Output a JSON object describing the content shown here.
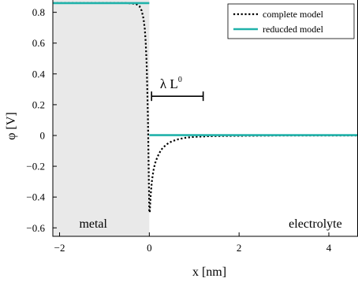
{
  "chart_data": {
    "type": "line",
    "title": "",
    "xlabel": "x   [nm]",
    "ylabel": "φ  [V]",
    "xlim": [
      -2.15,
      4.65
    ],
    "ylim": [
      -0.655,
      0.88
    ],
    "xticks": [
      -2,
      0,
      2,
      4
    ],
    "xtick_labels": [
      "−2",
      "0",
      "2",
      "4"
    ],
    "yticks": [
      0.8,
      0.6,
      0.4,
      0.2,
      0,
      -0.2,
      -0.4,
      -0.6
    ],
    "ytick_labels": [
      "0.8",
      "0.6",
      "0.4",
      "0.2",
      "0",
      "−0.2",
      "−0.4",
      "−0.6"
    ],
    "grid": false,
    "legend_position": "top-right",
    "shaded_region": {
      "x": [
        -2.15,
        0
      ],
      "color": "#e9e9e9"
    },
    "region_labels": {
      "left": "metal",
      "right": "electrolyte"
    },
    "annotation": {
      "text": "λ L",
      "superscript": "0",
      "x_start": 0.05,
      "x_end": 1.2,
      "y": 0.255
    },
    "series": [
      {
        "name": "complete model",
        "style": "dotted",
        "color": "#000000",
        "x": [
          -2.15,
          -0.5,
          -0.3,
          -0.22,
          -0.17,
          -0.13,
          -0.1,
          -0.08,
          -0.06,
          -0.045,
          -0.03,
          -0.02,
          -0.01,
          0.0,
          0.01,
          0.015,
          0.02,
          0.03,
          0.04,
          0.06,
          0.08,
          0.1,
          0.13,
          0.16,
          0.2,
          0.25,
          0.3,
          0.4,
          0.5,
          0.65,
          0.8,
          1.0,
          1.3,
          1.6,
          2.0,
          2.5,
          3.0,
          3.5,
          4.0,
          4.65
        ],
        "y": [
          0.86,
          0.86,
          0.855,
          0.84,
          0.81,
          0.76,
          0.69,
          0.6,
          0.47,
          0.3,
          0.1,
          -0.1,
          -0.3,
          -0.49,
          -0.5,
          -0.47,
          -0.44,
          -0.39,
          -0.35,
          -0.29,
          -0.25,
          -0.215,
          -0.18,
          -0.155,
          -0.128,
          -0.1,
          -0.08,
          -0.055,
          -0.038,
          -0.024,
          -0.015,
          -0.009,
          -0.005,
          -0.003,
          -0.002,
          -0.001,
          0,
          0,
          0,
          0
        ]
      },
      {
        "name": "reducded model",
        "style": "solid",
        "color": "#20b2aa",
        "segments": [
          {
            "x": [
              -2.15,
              0
            ],
            "y": [
              0.86,
              0.86
            ]
          },
          {
            "x": [
              0,
              4.65
            ],
            "y": [
              0.002,
              0.002
            ]
          }
        ]
      }
    ]
  }
}
